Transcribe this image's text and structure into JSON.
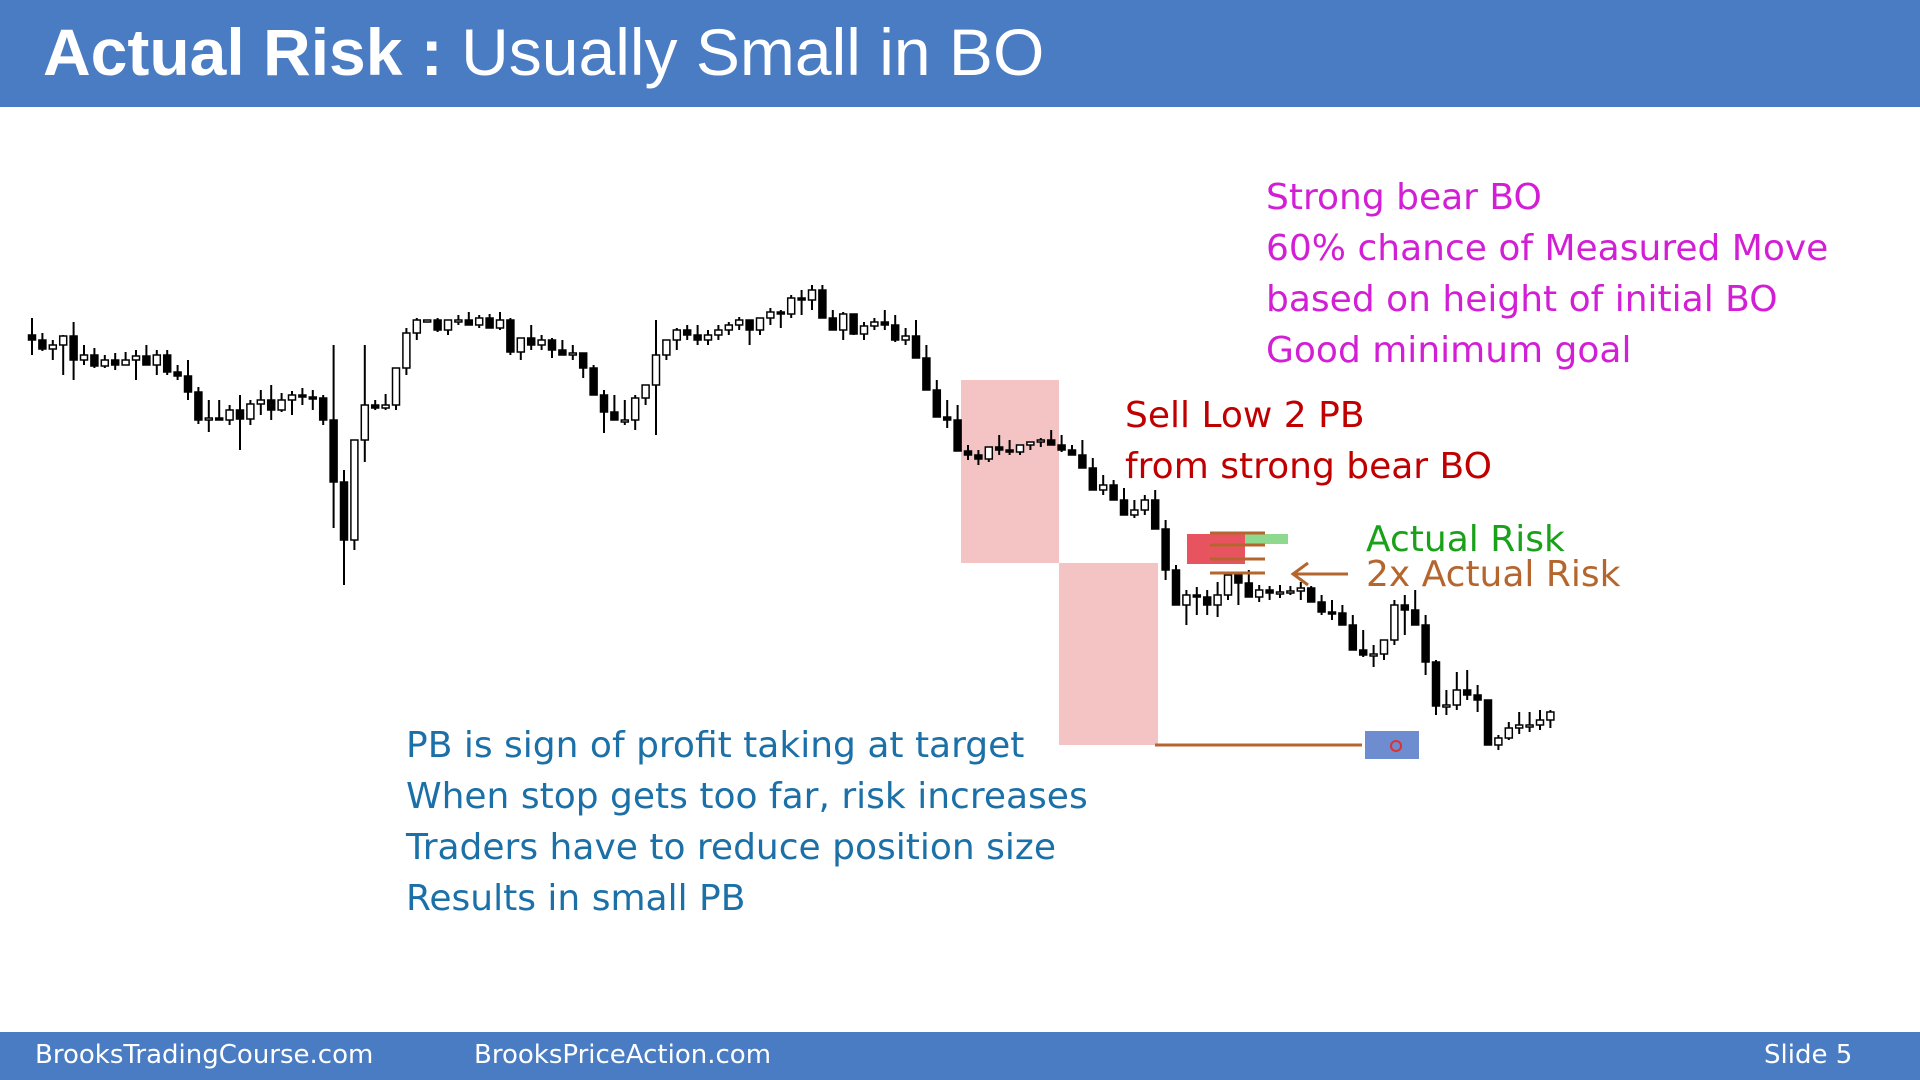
{
  "slide": {
    "title_bold": "Actual Risk :",
    "title_rest": " Usually Small in BO",
    "footer_left": "BrooksTradingCourse.com",
    "footer_middle": "BrooksPriceAction.com",
    "footer_right": "Slide  5"
  },
  "annotations": {
    "bear_bo": [
      "Strong bear BO",
      "60% chance of Measured Move",
      "based on height of initial BO",
      "Good minimum goal"
    ],
    "sell": [
      "Sell Low 2 PB",
      "from strong bear BO"
    ],
    "actual_risk": "Actual Risk",
    "double_risk": "2x Actual Risk",
    "notes": [
      "PB is sign of profit taking at target",
      "When stop gets too far, risk increases",
      "Traders have to reduce position size",
      "Results in small PB"
    ]
  },
  "colors": {
    "header": "#4a7cc4",
    "magenta": "#d21fd6",
    "red": "#c00000",
    "green": "#19a119",
    "brown": "#b5662e",
    "blue_text": "#1b70a8",
    "bo_box": "#f4c4c4",
    "entry_box": "#e7535f",
    "target_box": "#4a6fc4",
    "risk_bar": "#8fd98f"
  },
  "chart_data": {
    "type": "candlestick",
    "ohlc": [
      [
        335,
        318,
        355,
        340
      ],
      [
        340,
        333,
        351,
        349
      ],
      [
        349,
        340,
        360,
        345
      ],
      [
        345,
        335,
        375,
        336
      ],
      [
        336,
        322,
        380,
        360
      ],
      [
        360,
        345,
        365,
        355
      ],
      [
        355,
        348,
        368,
        366
      ],
      [
        366,
        355,
        368,
        360
      ],
      [
        360,
        353,
        370,
        365
      ],
      [
        365,
        352,
        362,
        360
      ],
      [
        360,
        350,
        380,
        356
      ],
      [
        356,
        345,
        365,
        365
      ],
      [
        365,
        350,
        375,
        355
      ],
      [
        355,
        350,
        375,
        372
      ],
      [
        372,
        365,
        380,
        376
      ],
      [
        376,
        360,
        400,
        392
      ],
      [
        392,
        387,
        424,
        420
      ],
      [
        420,
        400,
        432,
        418
      ],
      [
        418,
        400,
        420,
        420
      ],
      [
        420,
        405,
        425,
        410
      ],
      [
        410,
        395,
        450,
        419
      ],
      [
        419,
        400,
        425,
        404
      ],
      [
        404,
        390,
        415,
        400
      ],
      [
        400,
        385,
        420,
        410
      ],
      [
        410,
        393,
        412,
        400
      ],
      [
        400,
        391,
        415,
        395
      ],
      [
        395,
        388,
        405,
        397
      ],
      [
        397,
        390,
        410,
        398
      ],
      [
        398,
        395,
        425,
        420
      ],
      [
        420,
        345,
        528,
        482
      ],
      [
        482,
        470,
        585,
        540
      ],
      [
        540,
        440,
        550,
        440
      ],
      [
        440,
        345,
        462,
        405
      ],
      [
        405,
        400,
        410,
        408
      ],
      [
        408,
        394,
        410,
        405
      ],
      [
        405,
        368,
        410,
        368
      ],
      [
        368,
        328,
        375,
        333
      ],
      [
        333,
        318,
        340,
        320
      ],
      [
        320,
        320,
        322,
        320
      ],
      [
        320,
        318,
        332,
        330
      ],
      [
        330,
        320,
        335,
        320
      ],
      [
        320,
        315,
        325,
        320
      ],
      [
        320,
        312,
        325,
        325
      ],
      [
        325,
        315,
        328,
        318
      ],
      [
        318,
        314,
        328,
        328
      ],
      [
        328,
        312,
        330,
        320
      ],
      [
        320,
        318,
        355,
        352
      ],
      [
        352,
        340,
        360,
        338
      ],
      [
        338,
        325,
        350,
        345
      ],
      [
        345,
        335,
        350,
        340
      ],
      [
        340,
        338,
        358,
        350
      ],
      [
        350,
        340,
        350,
        355
      ],
      [
        355,
        345,
        360,
        353
      ],
      [
        353,
        355,
        378,
        368
      ],
      [
        368,
        365,
        395,
        395
      ],
      [
        395,
        390,
        433,
        412
      ],
      [
        412,
        395,
        420,
        420
      ],
      [
        420,
        400,
        425,
        420
      ],
      [
        420,
        395,
        430,
        398
      ],
      [
        398,
        385,
        405,
        385
      ],
      [
        385,
        320,
        435,
        355
      ],
      [
        355,
        340,
        360,
        340
      ],
      [
        340,
        328,
        350,
        330
      ],
      [
        330,
        325,
        340,
        335
      ],
      [
        335,
        325,
        345,
        340
      ],
      [
        340,
        330,
        345,
        335
      ],
      [
        335,
        325,
        340,
        330
      ],
      [
        330,
        322,
        335,
        325
      ],
      [
        325,
        317,
        330,
        320
      ],
      [
        320,
        322,
        345,
        330
      ],
      [
        330,
        320,
        335,
        318
      ],
      [
        318,
        308,
        325,
        312
      ],
      [
        312,
        310,
        328,
        314
      ],
      [
        314,
        295,
        318,
        298
      ],
      [
        298,
        290,
        315,
        300
      ],
      [
        300,
        285,
        310,
        290
      ],
      [
        290,
        285,
        318,
        318
      ],
      [
        318,
        310,
        325,
        330
      ],
      [
        330,
        312,
        340,
        314
      ],
      [
        314,
        320,
        335,
        334
      ],
      [
        334,
        322,
        340,
        326
      ],
      [
        326,
        318,
        330,
        322
      ],
      [
        322,
        310,
        330,
        325
      ],
      [
        325,
        315,
        342,
        340
      ],
      [
        340,
        328,
        345,
        336
      ],
      [
        336,
        320,
        340,
        358
      ],
      [
        358,
        345,
        365,
        390
      ],
      [
        390,
        380,
        400,
        417
      ],
      [
        417,
        400,
        428,
        420
      ],
      [
        420,
        405,
        445,
        451
      ],
      [
        451,
        445,
        460,
        455
      ],
      [
        455,
        450,
        465,
        459
      ],
      [
        459,
        450,
        462,
        447
      ],
      [
        447,
        435,
        455,
        450
      ],
      [
        450,
        440,
        455,
        452
      ],
      [
        452,
        445,
        455,
        445
      ],
      [
        445,
        442,
        450,
        442
      ],
      [
        442,
        438,
        447,
        440
      ],
      [
        440,
        430,
        442,
        445
      ],
      [
        445,
        435,
        452,
        450
      ],
      [
        450,
        445,
        452,
        455
      ],
      [
        455,
        440,
        465,
        468
      ],
      [
        468,
        458,
        478,
        490
      ],
      [
        490,
        475,
        495,
        485
      ],
      [
        485,
        480,
        500,
        500
      ],
      [
        500,
        488,
        505,
        515
      ],
      [
        515,
        500,
        518,
        510
      ],
      [
        510,
        495,
        515,
        500
      ],
      [
        500,
        490,
        505,
        529
      ],
      [
        529,
        520,
        580,
        570
      ],
      [
        570,
        565,
        605,
        605
      ],
      [
        605,
        590,
        625,
        595
      ],
      [
        595,
        587,
        615,
        597
      ],
      [
        597,
        590,
        615,
        605
      ],
      [
        605,
        582,
        617,
        595
      ],
      [
        595,
        575,
        600,
        575
      ],
      [
        575,
        573,
        605,
        583
      ],
      [
        583,
        570,
        588,
        597
      ],
      [
        597,
        585,
        602,
        590
      ],
      [
        590,
        586,
        600,
        593
      ],
      [
        593,
        585,
        598,
        592
      ],
      [
        592,
        586,
        595,
        591
      ],
      [
        591,
        582,
        600,
        588
      ],
      [
        588,
        586,
        598,
        602
      ],
      [
        602,
        595,
        615,
        612
      ],
      [
        612,
        600,
        620,
        613
      ],
      [
        613,
        605,
        625,
        625
      ],
      [
        625,
        615,
        650,
        650
      ],
      [
        650,
        630,
        657,
        655
      ],
      [
        655,
        645,
        667,
        654
      ],
      [
        654,
        645,
        660,
        640
      ],
      [
        640,
        600,
        645,
        605
      ],
      [
        605,
        595,
        635,
        610
      ],
      [
        610,
        590,
        615,
        625
      ],
      [
        625,
        615,
        675,
        662
      ],
      [
        662,
        660,
        715,
        706
      ],
      [
        706,
        690,
        715,
        705
      ],
      [
        705,
        672,
        710,
        690
      ],
      [
        690,
        670,
        700,
        695
      ],
      [
        695,
        685,
        712,
        700
      ],
      [
        700,
        705,
        745,
        745
      ],
      [
        745,
        735,
        750,
        738
      ],
      [
        738,
        722,
        740,
        728
      ],
      [
        728,
        712,
        734,
        725
      ],
      [
        725,
        712,
        732,
        725
      ],
      [
        725,
        710,
        730,
        720
      ],
      [
        720,
        710,
        728,
        712
      ]
    ],
    "notes": "Prices are shown in chart y-units (larger = lower on the chart); axis is unlabeled"
  }
}
